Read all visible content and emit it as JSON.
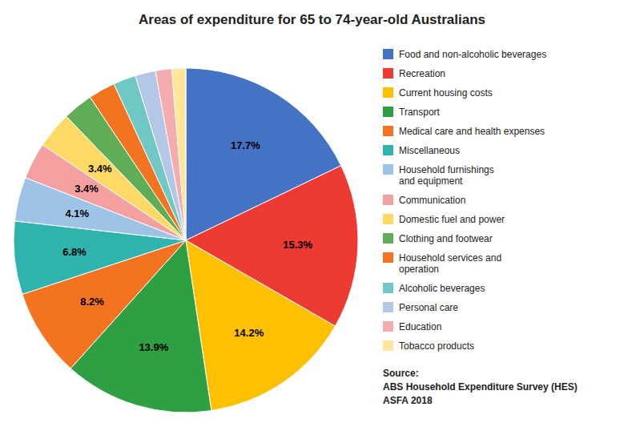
{
  "chart_data": {
    "type": "pie",
    "title": "Areas of expenditure for 65 to 74-year-old Australians",
    "categories": [
      "Food and non-alcoholic beverages",
      "Recreation",
      "Current housing costs",
      "Transport",
      "Medical care and health expenses",
      "Miscellaneous",
      "Household furnishings\nand equipment",
      "Communication",
      "Domestic fuel and power",
      "Clothing and footwear",
      "Household services and\noperation",
      "Alcoholic beverages",
      "Personal care",
      "Education",
      "Tobacco products"
    ],
    "values": [
      17.7,
      15.3,
      14.2,
      13.9,
      8.2,
      6.8,
      4.1,
      3.4,
      3.4,
      2.8,
      2.5,
      2.1,
      1.9,
      1.5,
      1.3
    ],
    "value_labels": [
      "17.7%",
      "15.3%",
      "14.2%",
      "13.9%",
      "8.2%",
      "6.8%",
      "4.1%",
      "3.4%",
      "3.4%",
      null,
      null,
      null,
      null,
      null,
      null
    ],
    "data_labels": true,
    "colors": [
      "#4472C4",
      "#ED3B33",
      "#FFC000",
      "#2E9F42",
      "#F47320",
      "#2EB3AF",
      "#9DC3E6",
      "#F4A0A0",
      "#FFD966",
      "#5FAD56",
      "#F47320",
      "#70C8C4",
      "#B4C7E7",
      "#F4ACAC",
      "#FFE699"
    ],
    "legend": "right",
    "annotations": [
      "Source:\nABS Household Expenditure Survey (HES)\nASFA 2018"
    ]
  }
}
